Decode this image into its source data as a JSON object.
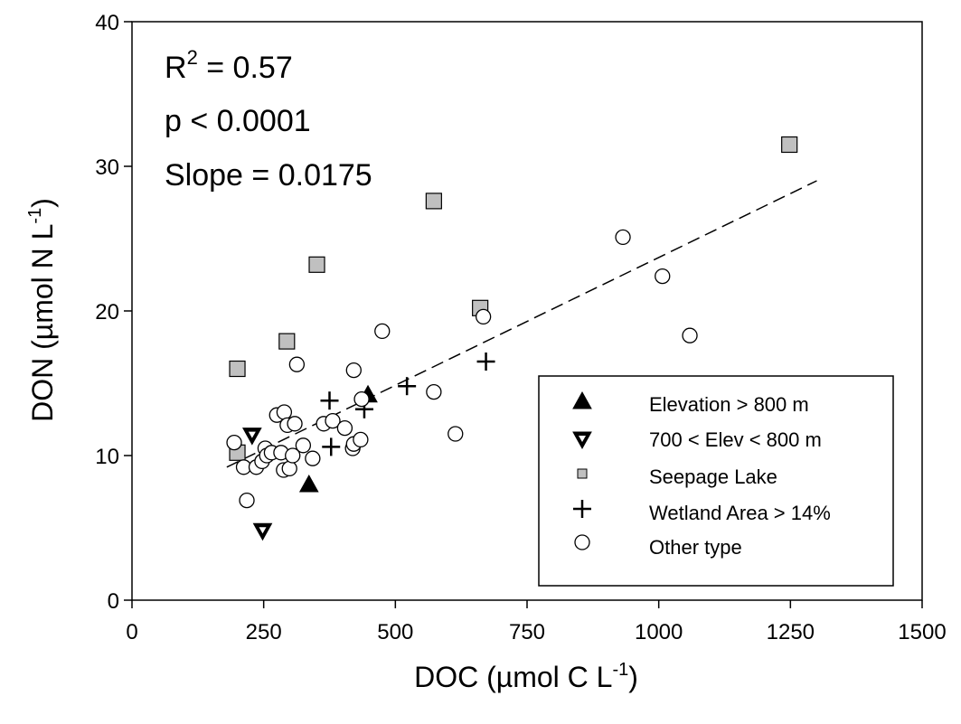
{
  "chart_data": {
    "type": "scatter",
    "xlabel": {
      "main": "DOC (µmol C L",
      "sup": "-1",
      "end": ")"
    },
    "ylabel": {
      "main": "DON (µmol N L",
      "sup": "-1",
      "end": ")"
    },
    "xlim": [
      0,
      1500
    ],
    "ylim": [
      0,
      40
    ],
    "xticks": [
      0,
      250,
      500,
      750,
      1000,
      1250,
      1500
    ],
    "yticks": [
      0,
      10,
      20,
      30,
      40
    ],
    "grid": false,
    "legend_position": "bottom-right",
    "annotations": {
      "r2": {
        "pre": "R",
        "sup": "2",
        "post": " = 0.57"
      },
      "p": "p < 0.0001",
      "slope": "Slope = 0.0175"
    },
    "trendline": {
      "style": "dashed",
      "x": [
        180,
        1300
      ],
      "y": [
        9.2,
        29.0
      ]
    },
    "series": [
      {
        "name": "Elevation > 800 m",
        "marker": "triangle-up",
        "color": "#000000",
        "points": [
          [
            336,
            8.0
          ],
          [
            448,
            14.2
          ]
        ]
      },
      {
        "name": "700 < Elev < 800 m",
        "marker": "triangle-down",
        "color": "#000000",
        "points": [
          [
            228,
            11.4
          ],
          [
            248,
            4.8
          ]
        ]
      },
      {
        "name": "Seepage Lake",
        "marker": "square",
        "color": "#c0c0c0",
        "points": [
          [
            200,
            10.2
          ],
          [
            200,
            16.0
          ],
          [
            294,
            17.9
          ],
          [
            351,
            23.2
          ],
          [
            573,
            27.6
          ],
          [
            661,
            20.2
          ],
          [
            1248,
            31.5
          ]
        ]
      },
      {
        "name": "Wetland Area > 14%",
        "marker": "plus",
        "color": "#000000",
        "points": [
          [
            375,
            13.8
          ],
          [
            378,
            10.6
          ],
          [
            441,
            13.2
          ],
          [
            522,
            14.8
          ],
          [
            672,
            16.5
          ]
        ]
      },
      {
        "name": "Other type",
        "marker": "circle",
        "color": "#ffffff",
        "points": [
          [
            194,
            10.9
          ],
          [
            212,
            9.2
          ],
          [
            218,
            6.9
          ],
          [
            236,
            9.2
          ],
          [
            247,
            9.6
          ],
          [
            253,
            10.5
          ],
          [
            256,
            10.0
          ],
          [
            265,
            10.2
          ],
          [
            275,
            12.8
          ],
          [
            283,
            10.2
          ],
          [
            288,
            9.0
          ],
          [
            289,
            13.0
          ],
          [
            295,
            12.1
          ],
          [
            299,
            9.1
          ],
          [
            305,
            10.0
          ],
          [
            309,
            12.2
          ],
          [
            313,
            16.3
          ],
          [
            325,
            10.7
          ],
          [
            343,
            9.8
          ],
          [
            364,
            12.2
          ],
          [
            381,
            12.4
          ],
          [
            404,
            11.9
          ],
          [
            419,
            10.5
          ],
          [
            421,
            10.8
          ],
          [
            421,
            15.9
          ],
          [
            434,
            11.1
          ],
          [
            436,
            13.9
          ],
          [
            475,
            18.6
          ],
          [
            573,
            14.4
          ],
          [
            614,
            11.5
          ],
          [
            667,
            19.6
          ],
          [
            932,
            25.1
          ],
          [
            1007,
            22.4
          ],
          [
            1059,
            18.3
          ]
        ]
      }
    ]
  }
}
